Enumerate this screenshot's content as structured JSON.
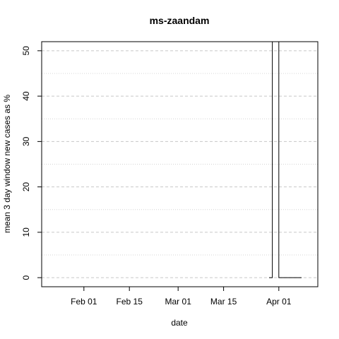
{
  "chart_data": {
    "type": "line",
    "title": "ms-zaandam",
    "xlabel": "date",
    "ylabel": "mean  3  day window new cases as %",
    "x_tick_labels": [
      "Feb 01",
      "Feb 15",
      "Mar 01",
      "Mar 15",
      "Apr 01"
    ],
    "x_tick_dates": [
      "2020-02-01",
      "2020-02-15",
      "2020-03-01",
      "2020-03-15",
      "2020-04-01"
    ],
    "y_ticks": [
      0,
      10,
      20,
      30,
      40,
      50
    ],
    "xlim": [
      "2020-01-19",
      "2020-04-13"
    ],
    "ylim": [
      -2,
      52
    ],
    "grid": true,
    "series": [
      {
        "color": "#000000",
        "points": [
          {
            "x": "2020-03-29",
            "y": 0
          },
          {
            "x": "2020-03-30",
            "y": 0
          },
          {
            "x": "2020-03-30",
            "y": 60
          },
          {
            "x": "2020-04-01",
            "y": 60
          },
          {
            "x": "2020-04-01",
            "y": 0
          },
          {
            "x": "2020-04-08",
            "y": 0
          }
        ]
      }
    ]
  }
}
